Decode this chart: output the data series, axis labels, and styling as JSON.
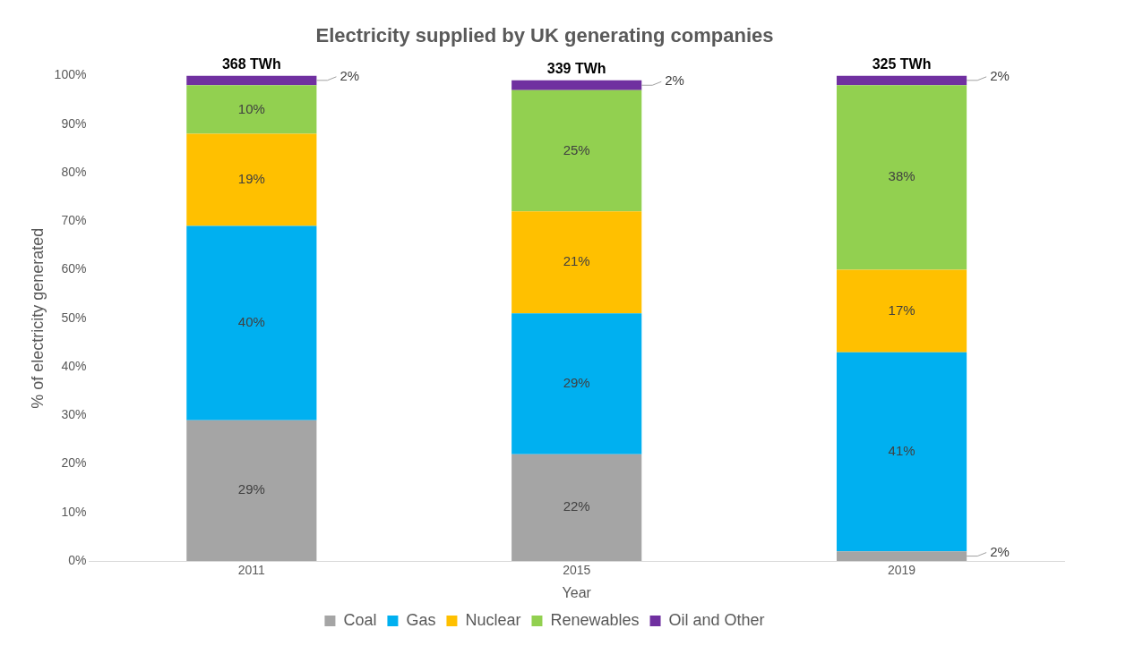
{
  "chart_data": {
    "type": "bar",
    "title": "Electricity supplied by UK generating companies",
    "xlabel": "Year",
    "ylabel": "% of electricity generated",
    "categories": [
      "2011",
      "2015",
      "2019"
    ],
    "stacked": true,
    "series": [
      {
        "name": "Coal",
        "color": "#a5a5a5",
        "values": [
          29,
          22,
          2
        ],
        "value_labels": [
          "29%",
          "22%",
          "2%"
        ]
      },
      {
        "name": "Gas",
        "color": "#00b0f0",
        "values": [
          40,
          29,
          41
        ],
        "value_labels": [
          "40%",
          "29%",
          "41%"
        ]
      },
      {
        "name": "Nuclear",
        "color": "#ffc000",
        "values": [
          19,
          21,
          17
        ],
        "value_labels": [
          "19%",
          "21%",
          "17%"
        ]
      },
      {
        "name": "Renewables",
        "color": "#92d050",
        "values": [
          10,
          25,
          38
        ],
        "value_labels": [
          "10%",
          "25%",
          "38%"
        ]
      },
      {
        "name": "Oil and Other",
        "color": "#7030a0",
        "values": [
          2,
          2,
          2
        ],
        "value_labels": [
          "2%",
          "2%",
          "2%"
        ]
      }
    ],
    "annotations": [
      {
        "text": "368 TWh",
        "x": "2011",
        "y": 100
      },
      {
        "text": "339 TWh",
        "x": "2015",
        "y": 99
      },
      {
        "text": "325 TWh",
        "x": "2019",
        "y": 100
      }
    ],
    "ylim": [
      0,
      100
    ],
    "yticks": [
      {
        "value": 0,
        "label": "0%"
      },
      {
        "value": 10,
        "label": "10%"
      },
      {
        "value": 20,
        "label": "20%"
      },
      {
        "value": 30,
        "label": "30%"
      },
      {
        "value": 40,
        "label": "40%"
      },
      {
        "value": 50,
        "label": "50%"
      },
      {
        "value": 60,
        "label": "60%"
      },
      {
        "value": 70,
        "label": "70%"
      },
      {
        "value": 80,
        "label": "80%"
      },
      {
        "value": 90,
        "label": "90%"
      },
      {
        "value": 100,
        "label": "100%"
      }
    ],
    "grid": false,
    "legend": "bottom"
  }
}
